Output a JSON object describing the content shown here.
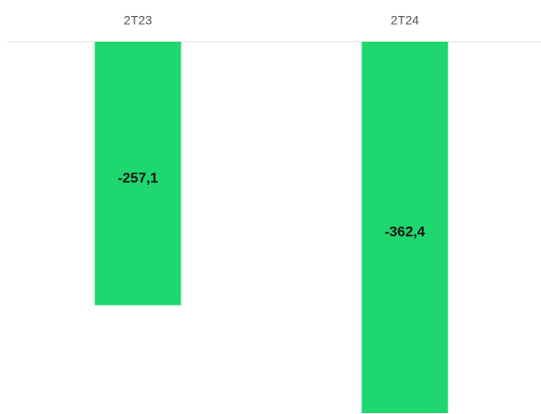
{
  "chart_data": {
    "type": "bar",
    "categories": [
      "2T23",
      "2T24"
    ],
    "values": [
      -257.1,
      -362.4
    ],
    "value_labels": [
      "-257,1",
      "-362,4"
    ],
    "color": "#1ed76f"
  }
}
